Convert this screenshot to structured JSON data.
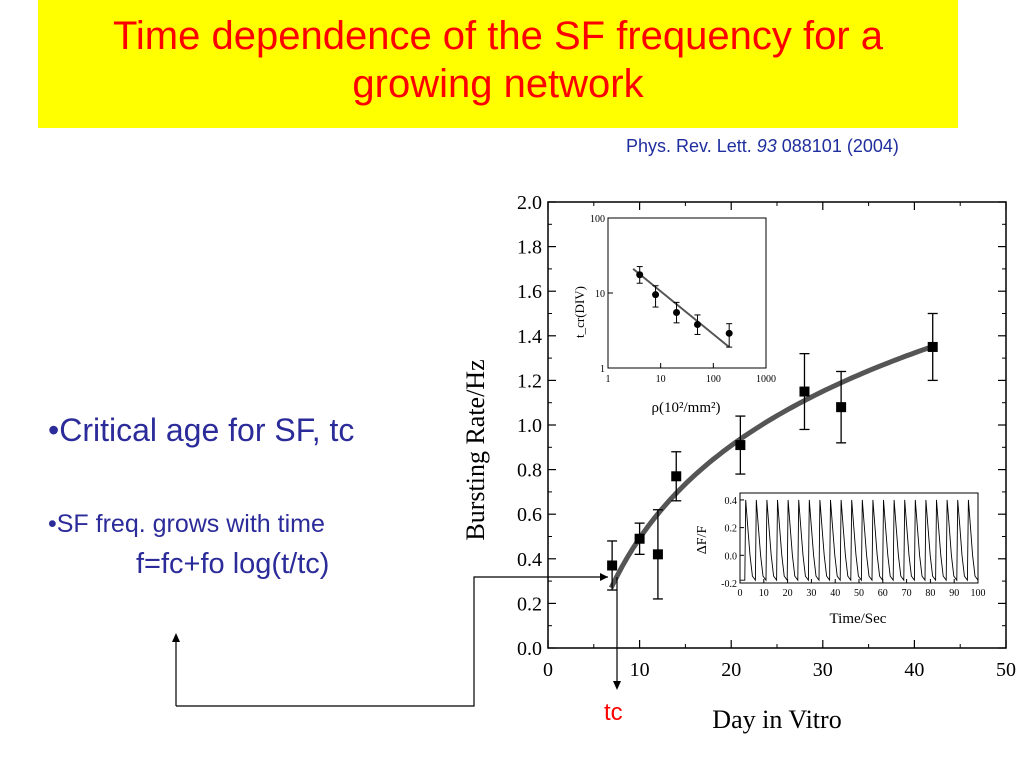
{
  "slide": {
    "title": "Time dependence of the SF frequency for a growing network",
    "citation": {
      "prefix": "Phys. Rev. Lett. ",
      "volume": "93",
      "suffix": " 088101 (2004)"
    },
    "bullet1": "•Critical age for SF, tc",
    "bullet2": "•SF freq. grows with time",
    "formula": "f=fc+fo log(t/tc)",
    "tc_label": "tc"
  },
  "colors": {
    "title_bg": "#ffff00",
    "title_text": "#ff0000",
    "body_text": "#2b2b9a",
    "tc_label": "#ff0000"
  },
  "chart_data": [
    {
      "type": "scatter",
      "xlabel": "Day in Vitro",
      "ylabel": "Bursting Rate/Hz",
      "xlim": [
        0,
        50
      ],
      "ylim": [
        0,
        2.0
      ],
      "x_ticks": [
        "0",
        "10",
        "20",
        "30",
        "40",
        "50"
      ],
      "y_ticks": [
        "0.0",
        "0.2",
        "0.4",
        "0.6",
        "0.8",
        "1.0",
        "1.2",
        "1.4",
        "1.6",
        "1.8",
        "2.0"
      ],
      "points": [
        {
          "x": 7,
          "y": 0.37,
          "err": 0.11
        },
        {
          "x": 10,
          "y": 0.49,
          "err": 0.07
        },
        {
          "x": 12,
          "y": 0.42,
          "err": 0.2
        },
        {
          "x": 14,
          "y": 0.77,
          "err": 0.11
        },
        {
          "x": 21,
          "y": 0.91,
          "err": 0.13
        },
        {
          "x": 28,
          "y": 1.15,
          "err": 0.17
        },
        {
          "x": 32,
          "y": 1.08,
          "err": 0.16
        },
        {
          "x": 42,
          "y": 1.35,
          "err": 0.15
        }
      ],
      "fit_curve": {
        "tc": 6.9,
        "fc": 0.27,
        "fo": 1.38,
        "x_end": 42
      }
    },
    {
      "type": "scatter",
      "inset": "top-left",
      "xlabel": "ρ(10²/mm²)",
      "ylabel": "t_cr(DIV)",
      "xscale": "log",
      "yscale": "log",
      "xlim": [
        1,
        1000
      ],
      "ylim": [
        1,
        100
      ],
      "x_ticks": [
        "1",
        "10",
        "100",
        "1000"
      ],
      "y_ticks": [
        "1",
        "10",
        "100"
      ],
      "points": [
        {
          "x": 4,
          "y": 17.5,
          "err_lo": 4,
          "err_hi": 5
        },
        {
          "x": 8,
          "y": 9.5,
          "err_lo": 3,
          "err_hi": 3
        },
        {
          "x": 20,
          "y": 5.5,
          "err_lo": 1.5,
          "err_hi": 2
        },
        {
          "x": 50,
          "y": 3.8,
          "err_lo": 1,
          "err_hi": 1.3
        },
        {
          "x": 200,
          "y": 2.9,
          "err_lo": 1,
          "err_hi": 1
        }
      ],
      "fit_line": {
        "x": [
          3,
          200
        ],
        "y": [
          21,
          1.9
        ]
      }
    },
    {
      "type": "line",
      "inset": "bottom-right",
      "xlabel": "Time/Sec",
      "ylabel": "ΔF/F",
      "xlim": [
        0,
        100
      ],
      "ylim": [
        -0.2,
        0.45
      ],
      "x_ticks": [
        "0",
        "10",
        "20",
        "30",
        "40",
        "50",
        "60",
        "70",
        "80",
        "90",
        "100"
      ],
      "y_ticks": [
        "-0.2",
        "0.0",
        "0.2",
        "0.4"
      ],
      "spike_count": 22,
      "spike_peak": 0.4,
      "baseline": -0.18
    }
  ]
}
